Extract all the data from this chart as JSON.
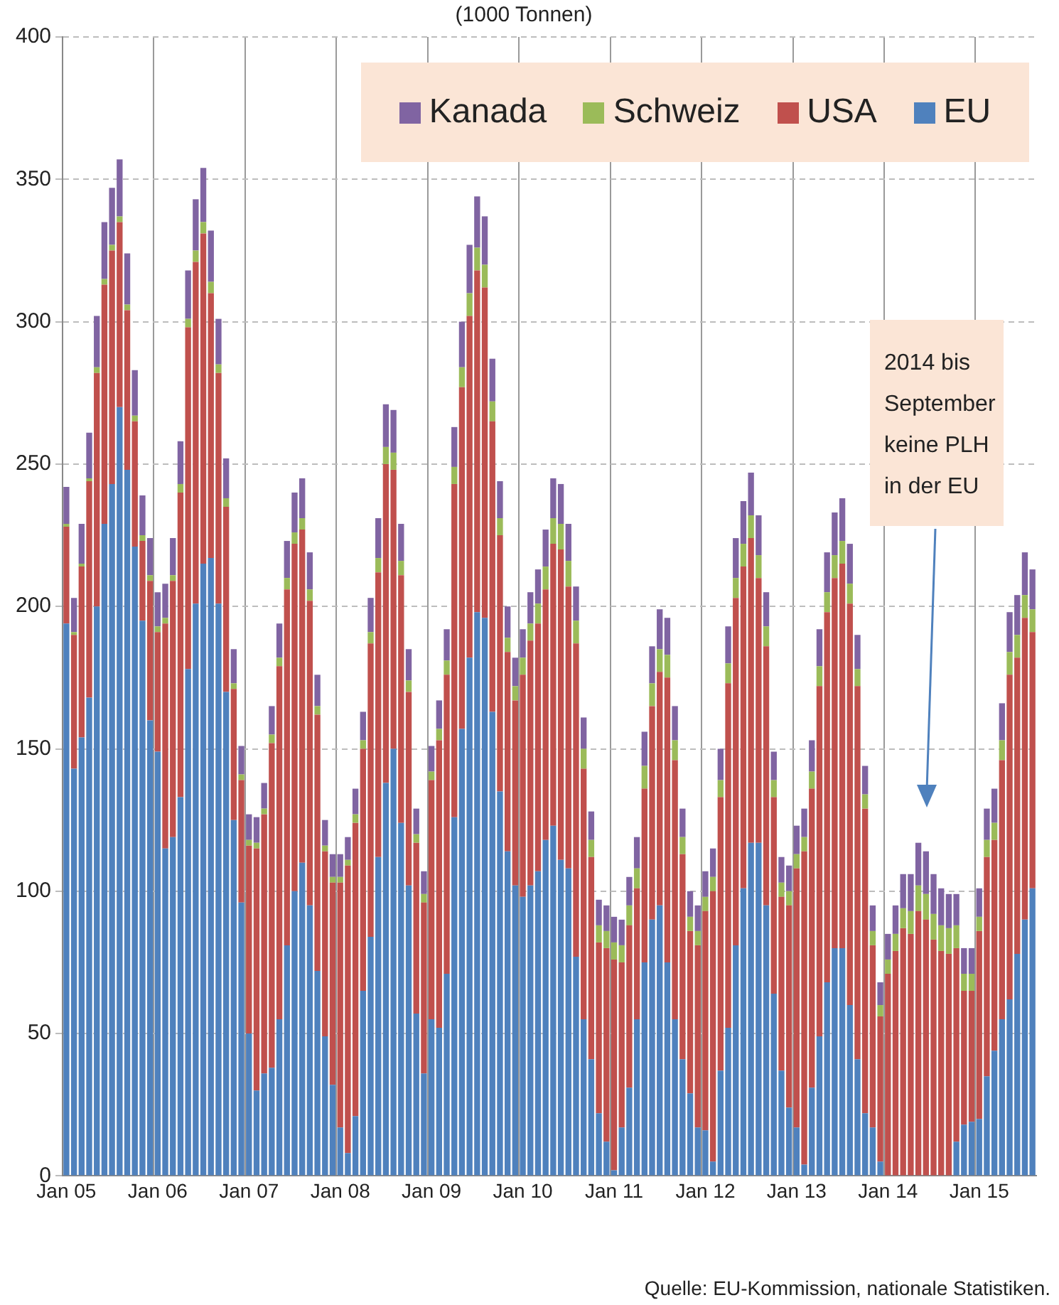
{
  "chart_data": {
    "type": "bar",
    "title": "(1000 Tonnen)",
    "stacked": true,
    "grid": true,
    "legend": "top right",
    "categories": [
      "Jan 05",
      null,
      null,
      null,
      null,
      null,
      null,
      null,
      null,
      null,
      null,
      null,
      "Jan 06",
      null,
      null,
      null,
      null,
      null,
      null,
      null,
      null,
      null,
      null,
      null,
      "Jan 07",
      null,
      null,
      null,
      null,
      null,
      null,
      null,
      null,
      null,
      null,
      null,
      "Jan 08",
      null,
      null,
      null,
      null,
      null,
      null,
      null,
      null,
      null,
      null,
      null,
      "Jan 09",
      null,
      null,
      null,
      null,
      null,
      null,
      null,
      null,
      null,
      null,
      null,
      "Jan 10",
      null,
      null,
      null,
      null,
      null,
      null,
      null,
      null,
      null,
      null,
      null,
      "Jan 11",
      null,
      null,
      null,
      null,
      null,
      null,
      null,
      null,
      null,
      null,
      null,
      "Jan 12",
      null,
      null,
      null,
      null,
      null,
      null,
      null,
      null,
      null,
      null,
      null,
      "Jan 13",
      null,
      null,
      null,
      null,
      null,
      null,
      null,
      null,
      null,
      null,
      null,
      "Jan 14",
      null,
      null,
      null,
      null,
      null,
      null,
      null,
      null,
      null,
      null,
      null,
      "Jan 15",
      null,
      null,
      null,
      null,
      null,
      null,
      null
    ],
    "ylim": [
      0,
      400
    ],
    "yticks": [
      0,
      50,
      100,
      150,
      200,
      250,
      300,
      350,
      400
    ],
    "series": [
      {
        "name": "EU",
        "color": "#4f81bd",
        "values": [
          194,
          143,
          154,
          168,
          200,
          229,
          243,
          270,
          248,
          221,
          195,
          160,
          149,
          115,
          119,
          133,
          178,
          201,
          215,
          217,
          201,
          170,
          125,
          96,
          50,
          30,
          36,
          38,
          55,
          81,
          100,
          110,
          95,
          72,
          49,
          32,
          17,
          8,
          21,
          65,
          84,
          112,
          138,
          150,
          124,
          102,
          57,
          36,
          55,
          52,
          71,
          126,
          157,
          182,
          198,
          196,
          163,
          135,
          114,
          102,
          98,
          102,
          107,
          118,
          123,
          111,
          108,
          77,
          55,
          41,
          22,
          12,
          2,
          17,
          31,
          55,
          75,
          90,
          95,
          75,
          55,
          41,
          29,
          17,
          16,
          5,
          37,
          52,
          81,
          101,
          117,
          117,
          95,
          64,
          37,
          24,
          17,
          4,
          31,
          49,
          68,
          80,
          80,
          60,
          41,
          22,
          17,
          5,
          0,
          0,
          0,
          0,
          0,
          0,
          0,
          0,
          0,
          12,
          18,
          19,
          20,
          35,
          44,
          55,
          62,
          78,
          90,
          101
        ]
      },
      {
        "name": "USA",
        "color": "#c0504d",
        "values": [
          34,
          47,
          60,
          76,
          82,
          84,
          82,
          65,
          56,
          44,
          28,
          49,
          42,
          79,
          90,
          107,
          120,
          120,
          116,
          93,
          81,
          65,
          46,
          43,
          66,
          85,
          91,
          114,
          124,
          125,
          122,
          117,
          107,
          90,
          65,
          71,
          86,
          101,
          103,
          85,
          103,
          100,
          112,
          98,
          87,
          68,
          60,
          60,
          84,
          101,
          105,
          117,
          120,
          120,
          120,
          116,
          102,
          90,
          70,
          65,
          78,
          86,
          87,
          88,
          99,
          109,
          99,
          110,
          88,
          71,
          60,
          68,
          74,
          58,
          57,
          46,
          61,
          75,
          82,
          100,
          91,
          72,
          57,
          64,
          77,
          95,
          96,
          121,
          122,
          113,
          107,
          93,
          91,
          69,
          61,
          71,
          91,
          110,
          105,
          123,
          130,
          130,
          135,
          141,
          131,
          107,
          64,
          51,
          71,
          79,
          87,
          85,
          93,
          90,
          83,
          79,
          78,
          68,
          47,
          46,
          66,
          77,
          74,
          91,
          114,
          104,
          106,
          90
        ]
      },
      {
        "name": "Schweiz",
        "color": "#9bbb59",
        "values": [
          1,
          1,
          1,
          1,
          2,
          2,
          2,
          2,
          2,
          2,
          2,
          2,
          2,
          2,
          2,
          3,
          3,
          4,
          4,
          4,
          3,
          3,
          2,
          2,
          2,
          2,
          2,
          3,
          3,
          4,
          4,
          4,
          4,
          3,
          2,
          2,
          2,
          2,
          3,
          3,
          4,
          5,
          6,
          6,
          5,
          4,
          3,
          3,
          3,
          4,
          5,
          6,
          7,
          8,
          8,
          8,
          7,
          6,
          5,
          5,
          6,
          6,
          7,
          8,
          9,
          9,
          9,
          8,
          7,
          6,
          6,
          6,
          6,
          6,
          7,
          7,
          8,
          8,
          8,
          8,
          7,
          6,
          5,
          5,
          5,
          5,
          6,
          7,
          7,
          8,
          8,
          8,
          7,
          6,
          5,
          5,
          5,
          5,
          6,
          7,
          7,
          8,
          8,
          7,
          6,
          5,
          5,
          4,
          5,
          6,
          7,
          8,
          9,
          9,
          9,
          9,
          9,
          8,
          6,
          6,
          5,
          6,
          6,
          7,
          8,
          8,
          8,
          8
        ]
      },
      {
        "name": "Kanada",
        "color": "#8064a2",
        "values": [
          13,
          12,
          14,
          16,
          18,
          20,
          20,
          20,
          18,
          16,
          14,
          13,
          12,
          12,
          13,
          15,
          17,
          18,
          19,
          18,
          16,
          14,
          12,
          10,
          9,
          9,
          9,
          10,
          12,
          13,
          14,
          14,
          13,
          11,
          9,
          8,
          8,
          8,
          9,
          10,
          12,
          14,
          15,
          15,
          13,
          11,
          9,
          8,
          9,
          10,
          11,
          14,
          16,
          17,
          18,
          17,
          15,
          13,
          11,
          10,
          10,
          11,
          12,
          13,
          14,
          14,
          13,
          12,
          11,
          10,
          9,
          9,
          9,
          9,
          10,
          11,
          12,
          13,
          14,
          13,
          12,
          10,
          9,
          9,
          9,
          10,
          11,
          13,
          14,
          15,
          15,
          14,
          12,
          10,
          9,
          9,
          10,
          10,
          11,
          13,
          14,
          15,
          15,
          14,
          12,
          10,
          9,
          8,
          9,
          10,
          12,
          13,
          15,
          15,
          14,
          13,
          12,
          11,
          9,
          9,
          10,
          11,
          12,
          13,
          14,
          14,
          15,
          14
        ]
      }
    ],
    "annotations": [
      "2014 bis September keine PLH in der EU",
      "Quelle: EU-Kommission, nationale Statistiken."
    ]
  }
}
